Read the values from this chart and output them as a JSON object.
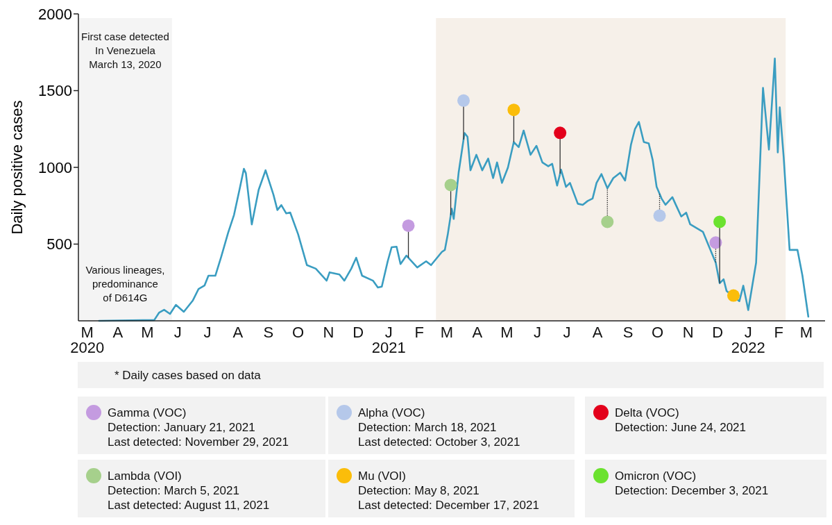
{
  "chart_data": {
    "type": "line",
    "ylabel": "Daily positive cases",
    "xlim": [
      "2020-02-21",
      "2022-03-20"
    ],
    "ylim": [
      0,
      2000
    ],
    "yticks": [
      500,
      1000,
      1500,
      2000
    ],
    "xticks": [
      {
        "value": "2020-03-01",
        "label": "M\n2020"
      },
      {
        "value": "2020-04-01",
        "label": "A"
      },
      {
        "value": "2020-05-01",
        "label": "M"
      },
      {
        "value": "2020-06-01",
        "label": "J"
      },
      {
        "value": "2020-07-01",
        "label": "J"
      },
      {
        "value": "2020-08-01",
        "label": "A"
      },
      {
        "value": "2020-09-01",
        "label": "S"
      },
      {
        "value": "2020-10-01",
        "label": "O"
      },
      {
        "value": "2020-11-01",
        "label": "N"
      },
      {
        "value": "2020-12-01",
        "label": "D"
      },
      {
        "value": "2021-01-01",
        "label": "J\n2021"
      },
      {
        "value": "2021-02-01",
        "label": "F"
      },
      {
        "value": "2021-03-01",
        "label": "M"
      },
      {
        "value": "2021-04-01",
        "label": "A"
      },
      {
        "value": "2021-05-01",
        "label": "M"
      },
      {
        "value": "2021-06-01",
        "label": "J"
      },
      {
        "value": "2021-07-01",
        "label": "J"
      },
      {
        "value": "2021-08-01",
        "label": "A"
      },
      {
        "value": "2021-09-01",
        "label": "S"
      },
      {
        "value": "2021-10-01",
        "label": "O"
      },
      {
        "value": "2021-11-01",
        "label": "N"
      },
      {
        "value": "2021-12-01",
        "label": "D"
      },
      {
        "value": "2022-01-01",
        "label": "J\n2022"
      },
      {
        "value": "2022-02-01",
        "label": "F"
      },
      {
        "value": "2022-03-01",
        "label": "M"
      }
    ],
    "grid": false,
    "legend": "bottom",
    "bands": [
      {
        "axis": "x",
        "from": "2020-02-21",
        "to": "2020-05-26",
        "label": "Various lineages,\npredominance\nof D614G",
        "color": "#f4f4f4"
      },
      {
        "axis": "x",
        "from": "2021-02-18",
        "to": "2022-02-08",
        "color": "#f6f0e9"
      }
    ],
    "annotations": [
      "First case detected\nIn Venezuela\nMarch 13, 2020",
      "* Daily cases based on data"
    ],
    "series": [
      {
        "color": "#3a9dc1",
        "x": [
          "2020-03-13",
          "2020-05-08",
          "2020-05-13",
          "2020-05-18",
          "2020-05-24",
          "2020-05-30",
          "2020-06-07",
          "2020-06-16",
          "2020-06-22",
          "2020-06-28",
          "2020-07-02",
          "2020-07-09",
          "2020-07-15",
          "2020-07-22",
          "2020-07-28",
          "2020-08-03",
          "2020-08-07",
          "2020-08-09",
          "2020-08-15",
          "2020-08-22",
          "2020-08-29",
          "2020-09-06",
          "2020-09-10",
          "2020-09-14",
          "2020-09-19",
          "2020-09-23",
          "2020-10-01",
          "2020-10-10",
          "2020-10-19",
          "2020-10-30",
          "2020-11-02",
          "2020-11-12",
          "2020-11-17",
          "2020-11-24",
          "2020-11-29",
          "2020-12-05",
          "2020-12-16",
          "2020-12-21",
          "2020-12-25",
          "2020-12-31",
          "2021-01-04",
          "2021-01-09",
          "2021-01-13",
          "2021-01-19",
          "2021-01-30",
          "2021-02-08",
          "2021-02-13",
          "2021-02-24",
          "2021-02-27",
          "2021-03-02",
          "2021-03-06",
          "2021-03-08",
          "2021-03-13",
          "2021-03-19",
          "2021-03-22",
          "2021-03-25",
          "2021-03-31",
          "2021-04-06",
          "2021-04-12",
          "2021-04-17",
          "2021-04-21",
          "2021-04-26",
          "2021-05-02",
          "2021-05-08",
          "2021-05-13",
          "2021-05-18",
          "2021-05-25",
          "2021-05-31",
          "2021-06-06",
          "2021-06-12",
          "2021-06-16",
          "2021-06-21",
          "2021-06-25",
          "2021-06-30",
          "2021-07-04",
          "2021-07-12",
          "2021-07-17",
          "2021-07-22",
          "2021-07-27",
          "2021-07-31",
          "2021-08-05",
          "2021-08-11",
          "2021-08-17",
          "2021-08-24",
          "2021-08-29",
          "2021-09-04",
          "2021-09-08",
          "2021-09-12",
          "2021-09-17",
          "2021-09-22",
          "2021-09-26",
          "2021-09-30",
          "2021-10-05",
          "2021-10-09",
          "2021-10-16",
          "2021-10-19",
          "2021-10-25",
          "2021-10-30",
          "2021-11-03",
          "2021-11-16",
          "2021-11-29",
          "2021-12-03",
          "2021-12-07",
          "2021-12-10",
          "2021-12-23",
          "2021-12-27",
          "2022-01-01",
          "2022-01-09",
          "2022-01-16",
          "2022-01-22",
          "2022-01-28",
          "2022-01-31",
          "2022-02-02",
          "2022-02-06",
          "2022-02-12",
          "2022-02-20",
          "2022-02-25",
          "2022-03-03"
        ],
        "values": [
          0,
          5,
          54,
          72,
          45,
          104,
          59,
          131,
          208,
          230,
          294,
          294,
          418,
          574,
          691,
          869,
          991,
          962,
          628,
          854,
          981,
          822,
          722,
          754,
          700,
          706,
          565,
          363,
          340,
          262,
          316,
          302,
          262,
          340,
          411,
          294,
          262,
          217,
          223,
          388,
          480,
          483,
          370,
          425,
          348,
          388,
          363,
          449,
          462,
          564,
          731,
          664,
          966,
          1224,
          1199,
          981,
          1082,
          981,
          1057,
          930,
          1032,
          899,
          998,
          1165,
          1132,
          1240,
          1082,
          1140,
          1032,
          1007,
          1023,
          881,
          985,
          873,
          899,
          763,
          756,
          781,
          797,
          899,
          956,
          864,
          930,
          965,
          914,
          1149,
          1249,
          1296,
          1165,
          1156,
          1048,
          873,
          797,
          756,
          806,
          763,
          680,
          705,
          630,
          580,
          379,
          245,
          271,
          195,
          128,
          229,
          70,
          379,
          1518,
          1116,
          1709,
          1098,
          1391,
          1066,
          462,
          462,
          295,
          27
        ]
      },
      {
        "type": "scatter",
        "name": "Gamma (VOC)\nDetection: January 21, 2021\nLast detected: November 29, 2021",
        "color": "#c49be0",
        "marker": "circle",
        "x": [
          "2021-01-21",
          "2021-11-29"
        ],
        "values": [
          620,
          510
        ]
      },
      {
        "type": "scatter",
        "name": "Alpha (VOC)\nDetection: March 18, 2021\nLast detected: October 3, 2021",
        "color": "#b5c8ea",
        "marker": "circle",
        "x": [
          "2021-03-18",
          "2021-10-03"
        ],
        "values": [
          1435,
          685
        ]
      },
      {
        "type": "scatter",
        "name": "Delta (VOC)\nDetection: June 24, 2021",
        "color": "#e3001b",
        "marker": "circle",
        "x": [
          "2021-06-24"
        ],
        "values": [
          1225
        ]
      },
      {
        "type": "scatter",
        "name": "Lambda (VOI)\nDetection: March 5, 2021\nLast detected: August 11, 2021",
        "color": "#a6d08c",
        "marker": "circle",
        "x": [
          "2021-03-05",
          "2021-08-11"
        ],
        "values": [
          885,
          645
        ]
      },
      {
        "type": "scatter",
        "name": "Mu (VOI)\nDetection: May 8, 2021\nLast detected: December 17, 2021",
        "color": "#fbbd0a",
        "marker": "circle",
        "x": [
          "2021-05-08",
          "2021-12-17"
        ],
        "values": [
          1375,
          165
        ]
      },
      {
        "type": "scatter",
        "name": "Omicron (VOC)\nDetection: December 3, 2021",
        "color": "#6be22f",
        "marker": "circle",
        "x": [
          "2021-12-03"
        ],
        "values": [
          645
        ]
      }
    ]
  }
}
